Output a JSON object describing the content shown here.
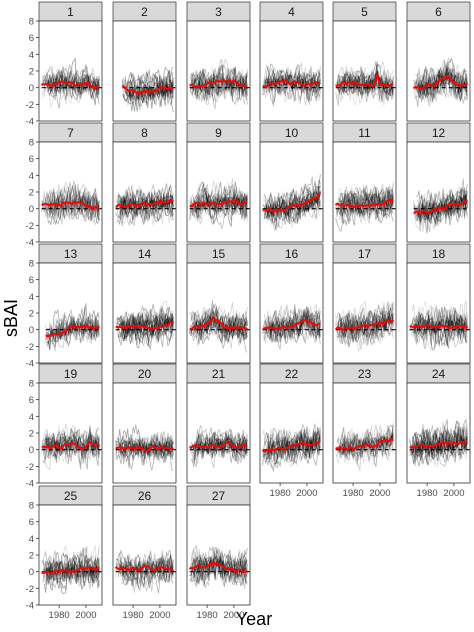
{
  "chart_data": {
    "type": "line",
    "layout": "faceted small multiples",
    "xlabel": "Year",
    "ylabel": "sBAI",
    "ylim": [
      -4,
      8
    ],
    "yticks": [
      -4,
      -2,
      0,
      2,
      4,
      6,
      8
    ],
    "xlim": [
      1965,
      2012
    ],
    "xticks": [
      1980,
      2000
    ],
    "reference_line": {
      "y": 0,
      "style": "dashed",
      "color": "#000000"
    },
    "colors": {
      "mean_line": "#ff0000",
      "tree_lines": "#000000",
      "strip_fill": "#d9d9d9",
      "panel_border": "#333333"
    },
    "grid": false,
    "description_of_series": "Each panel shows many grey individual-tree series and one red mean series",
    "panels": [
      {
        "label": "1",
        "start": 1967,
        "mean": [
          [
            1967,
            0.4
          ],
          [
            1975,
            0.3
          ],
          [
            1985,
            0.6
          ],
          [
            1995,
            0.3
          ],
          [
            2002,
            0.5
          ],
          [
            2004,
            0.2
          ],
          [
            2010,
            0.1
          ]
        ]
      },
      {
        "label": "2",
        "start": 1972,
        "mean": [
          [
            1972,
            0.4
          ],
          [
            1975,
            -0.3
          ],
          [
            1982,
            -0.6
          ],
          [
            1990,
            -0.4
          ],
          [
            2000,
            -0.1
          ],
          [
            2010,
            0.0
          ]
        ]
      },
      {
        "label": "3",
        "start": 1967,
        "mean": [
          [
            1967,
            0.4
          ],
          [
            1975,
            0.2
          ],
          [
            1985,
            0.5
          ],
          [
            1990,
            0.9
          ],
          [
            1995,
            0.6
          ],
          [
            2000,
            0.7
          ],
          [
            2005,
            0.3
          ],
          [
            2010,
            0.4
          ]
        ]
      },
      {
        "label": "4",
        "start": 1967,
        "mean": [
          [
            1967,
            0.3
          ],
          [
            1975,
            0.5
          ],
          [
            1985,
            0.8
          ],
          [
            1990,
            0.6
          ],
          [
            1995,
            0.7
          ],
          [
            2000,
            0.4
          ],
          [
            2005,
            0.5
          ],
          [
            2010,
            0.4
          ]
        ]
      },
      {
        "label": "5",
        "start": 1967,
        "mean": [
          [
            1967,
            0.4
          ],
          [
            1975,
            0.6
          ],
          [
            1985,
            0.4
          ],
          [
            1995,
            0.3
          ],
          [
            1998,
            1.5
          ],
          [
            2000,
            0.4
          ],
          [
            2005,
            0.3
          ],
          [
            2010,
            0.3
          ]
        ]
      },
      {
        "label": "6",
        "start": 1970,
        "mean": [
          [
            1970,
            0.0
          ],
          [
            1978,
            0.1
          ],
          [
            1985,
            0.4
          ],
          [
            1990,
            0.9
          ],
          [
            1995,
            1.3
          ],
          [
            1998,
            0.9
          ],
          [
            2003,
            0.4
          ],
          [
            2010,
            0.3
          ]
        ]
      },
      {
        "label": "7",
        "start": 1967,
        "mean": [
          [
            1967,
            0.5
          ],
          [
            1975,
            0.4
          ],
          [
            1985,
            0.7
          ],
          [
            1995,
            0.8
          ],
          [
            2000,
            0.5
          ],
          [
            2005,
            0.2
          ],
          [
            2010,
            0.0
          ]
        ]
      },
      {
        "label": "8",
        "start": 1967,
        "mean": [
          [
            1967,
            0.3
          ],
          [
            1975,
            0.4
          ],
          [
            1985,
            0.5
          ],
          [
            1995,
            0.6
          ],
          [
            2000,
            0.7
          ],
          [
            2005,
            0.9
          ],
          [
            2010,
            0.8
          ]
        ]
      },
      {
        "label": "9",
        "start": 1967,
        "mean": [
          [
            1967,
            0.4
          ],
          [
            1975,
            0.6
          ],
          [
            1985,
            0.8
          ],
          [
            1990,
            0.5
          ],
          [
            1995,
            0.9
          ],
          [
            2000,
            1.0
          ],
          [
            2005,
            0.7
          ],
          [
            2010,
            0.8
          ]
        ]
      },
      {
        "label": "10",
        "start": 1967,
        "mean": [
          [
            1967,
            0.0
          ],
          [
            1975,
            -0.2
          ],
          [
            1985,
            0.0
          ],
          [
            1990,
            0.3
          ],
          [
            1995,
            0.4
          ],
          [
            2000,
            0.6
          ],
          [
            2005,
            1.2
          ],
          [
            2010,
            1.8
          ]
        ]
      },
      {
        "label": "11",
        "start": 1967,
        "mean": [
          [
            1967,
            0.5
          ],
          [
            1975,
            0.4
          ],
          [
            1985,
            0.3
          ],
          [
            1990,
            0.6
          ],
          [
            1995,
            0.4
          ],
          [
            2000,
            0.6
          ],
          [
            2005,
            0.8
          ],
          [
            2010,
            1.0
          ]
        ]
      },
      {
        "label": "12",
        "start": 1970,
        "mean": [
          [
            1970,
            -0.5
          ],
          [
            1978,
            -0.4
          ],
          [
            1985,
            -0.2
          ],
          [
            1990,
            0.0
          ],
          [
            1995,
            0.3
          ],
          [
            2000,
            0.5
          ],
          [
            2005,
            0.7
          ],
          [
            2010,
            1.0
          ]
        ]
      },
      {
        "label": "13",
        "start": 1970,
        "mean": [
          [
            1970,
            -0.7
          ],
          [
            1978,
            -0.5
          ],
          [
            1985,
            -0.1
          ],
          [
            1990,
            0.5
          ],
          [
            1995,
            0.2
          ],
          [
            2000,
            0.4
          ],
          [
            2005,
            0.1
          ],
          [
            2010,
            0.3
          ]
        ]
      },
      {
        "label": "14",
        "start": 1967,
        "mean": [
          [
            1967,
            0.4
          ],
          [
            1975,
            0.3
          ],
          [
            1985,
            0.4
          ],
          [
            1990,
            0.2
          ],
          [
            1995,
            0.3
          ],
          [
            2000,
            0.5
          ],
          [
            2005,
            0.6
          ],
          [
            2010,
            0.9
          ]
        ]
      },
      {
        "label": "15",
        "start": 1967,
        "mean": [
          [
            1967,
            0.2
          ],
          [
            1975,
            0.3
          ],
          [
            1980,
            0.8
          ],
          [
            1985,
            1.2
          ],
          [
            1990,
            0.6
          ],
          [
            1995,
            0.1
          ],
          [
            2000,
            0.3
          ],
          [
            2005,
            0.2
          ],
          [
            2010,
            0.2
          ]
        ]
      },
      {
        "label": "16",
        "start": 1967,
        "mean": [
          [
            1967,
            0.0
          ],
          [
            1975,
            0.1
          ],
          [
            1985,
            0.3
          ],
          [
            1990,
            0.5
          ],
          [
            1995,
            0.9
          ],
          [
            2000,
            1.0
          ],
          [
            2005,
            0.6
          ],
          [
            2010,
            0.5
          ]
        ]
      },
      {
        "label": "17",
        "start": 1967,
        "mean": [
          [
            1967,
            0.1
          ],
          [
            1975,
            0.2
          ],
          [
            1985,
            0.3
          ],
          [
            1990,
            0.4
          ],
          [
            1995,
            0.5
          ],
          [
            2000,
            0.7
          ],
          [
            2005,
            0.9
          ],
          [
            2010,
            1.2
          ]
        ]
      },
      {
        "label": "18",
        "start": 1967,
        "mean": [
          [
            1967,
            0.4
          ],
          [
            1975,
            0.5
          ],
          [
            1985,
            0.3
          ],
          [
            1990,
            0.4
          ],
          [
            1995,
            0.5
          ],
          [
            2000,
            0.3
          ],
          [
            2005,
            0.4
          ],
          [
            2010,
            0.3
          ]
        ]
      },
      {
        "label": "19",
        "start": 1967,
        "mean": [
          [
            1967,
            0.4
          ],
          [
            1975,
            0.3
          ],
          [
            1985,
            0.5
          ],
          [
            1990,
            0.7
          ],
          [
            1995,
            0.4
          ],
          [
            2000,
            0.3
          ],
          [
            2003,
            1.0
          ],
          [
            2005,
            0.5
          ],
          [
            2010,
            0.4
          ]
        ]
      },
      {
        "label": "20",
        "start": 1967,
        "mean": [
          [
            1967,
            0.3
          ],
          [
            1975,
            0.2
          ],
          [
            1985,
            0.3
          ],
          [
            1990,
            0.1
          ],
          [
            1995,
            0.3
          ],
          [
            2000,
            0.2
          ],
          [
            2005,
            0.3
          ],
          [
            2010,
            0.3
          ]
        ]
      },
      {
        "label": "21",
        "start": 1967,
        "mean": [
          [
            1967,
            0.4
          ],
          [
            1975,
            0.3
          ],
          [
            1985,
            0.5
          ],
          [
            1990,
            0.4
          ],
          [
            1995,
            0.9
          ],
          [
            2000,
            0.4
          ],
          [
            2005,
            0.3
          ],
          [
            2010,
            0.4
          ]
        ]
      },
      {
        "label": "22",
        "start": 1967,
        "mean": [
          [
            1967,
            -0.2
          ],
          [
            1975,
            0.0
          ],
          [
            1985,
            0.2
          ],
          [
            1990,
            0.5
          ],
          [
            1995,
            0.6
          ],
          [
            2000,
            0.7
          ],
          [
            2005,
            0.8
          ],
          [
            2010,
            0.9
          ]
        ]
      },
      {
        "label": "23",
        "start": 1967,
        "mean": [
          [
            1967,
            0.1
          ],
          [
            1975,
            0.3
          ],
          [
            1985,
            0.2
          ],
          [
            1990,
            0.6
          ],
          [
            1995,
            0.5
          ],
          [
            2000,
            0.8
          ],
          [
            2005,
            1.0
          ],
          [
            2010,
            1.3
          ]
        ]
      },
      {
        "label": "24",
        "start": 1967,
        "mean": [
          [
            1967,
            0.3
          ],
          [
            1975,
            0.4
          ],
          [
            1985,
            0.5
          ],
          [
            1990,
            0.6
          ],
          [
            1995,
            0.7
          ],
          [
            2000,
            0.8
          ],
          [
            2005,
            0.9
          ],
          [
            2010,
            1.0
          ]
        ]
      },
      {
        "label": "25",
        "start": 1967,
        "mean": [
          [
            1967,
            -0.1
          ],
          [
            1975,
            0.0
          ],
          [
            1985,
            0.1
          ],
          [
            1990,
            0.2
          ],
          [
            1995,
            0.3
          ],
          [
            2000,
            0.4
          ],
          [
            2005,
            0.3
          ],
          [
            2010,
            0.4
          ]
        ]
      },
      {
        "label": "26",
        "start": 1967,
        "mean": [
          [
            1967,
            0.6
          ],
          [
            1975,
            0.4
          ],
          [
            1985,
            0.3
          ],
          [
            1990,
            0.5
          ],
          [
            1995,
            0.2
          ],
          [
            2000,
            0.5
          ],
          [
            2005,
            0.4
          ],
          [
            2010,
            0.3
          ]
        ]
      },
      {
        "label": "27",
        "start": 1967,
        "mean": [
          [
            1967,
            0.3
          ],
          [
            1975,
            0.6
          ],
          [
            1985,
            0.9
          ],
          [
            1990,
            0.7
          ],
          [
            1995,
            0.4
          ],
          [
            2000,
            0.2
          ],
          [
            2005,
            0.2
          ],
          [
            2010,
            0.1
          ]
        ]
      }
    ]
  }
}
